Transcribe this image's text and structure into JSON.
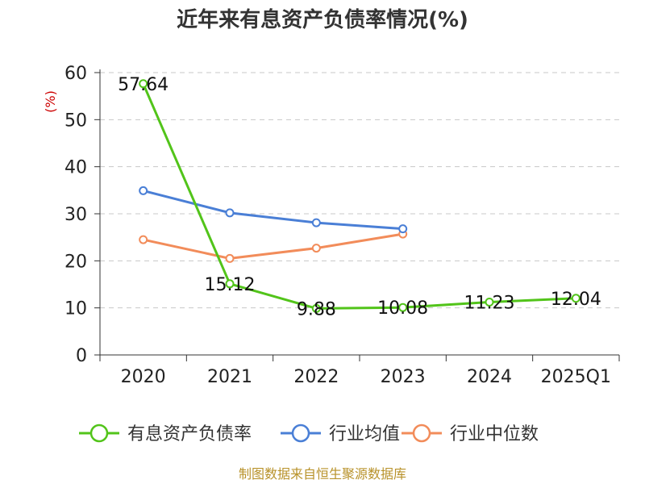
{
  "chart_data": {
    "type": "line",
    "title": "近年来有息资产负债率情况(%)",
    "y_unit": "(%)",
    "categories": [
      "2020",
      "2021",
      "2022",
      "2023",
      "2024",
      "2025Q1"
    ],
    "ylim": [
      0,
      60
    ],
    "yticks": [
      0,
      10,
      20,
      30,
      40,
      50,
      60
    ],
    "grid": true,
    "legend_position": "bottom",
    "series": [
      {
        "name": "有息资产负债率",
        "color": "#52c41a",
        "values": [
          57.64,
          15.12,
          9.88,
          10.08,
          11.23,
          12.04
        ],
        "labels": [
          "57.64",
          "15.12",
          "9.88",
          "10.08",
          "11.23",
          "12.04"
        ]
      },
      {
        "name": "行业均值",
        "color": "#4a7fd6",
        "values": [
          34.9,
          30.2,
          28.1,
          26.8,
          null,
          null
        ]
      },
      {
        "name": "行业中位数",
        "color": "#f28c5a",
        "values": [
          24.5,
          20.5,
          22.7,
          25.7,
          null,
          null
        ]
      }
    ]
  },
  "source": "制图数据来自恒生聚源数据库"
}
